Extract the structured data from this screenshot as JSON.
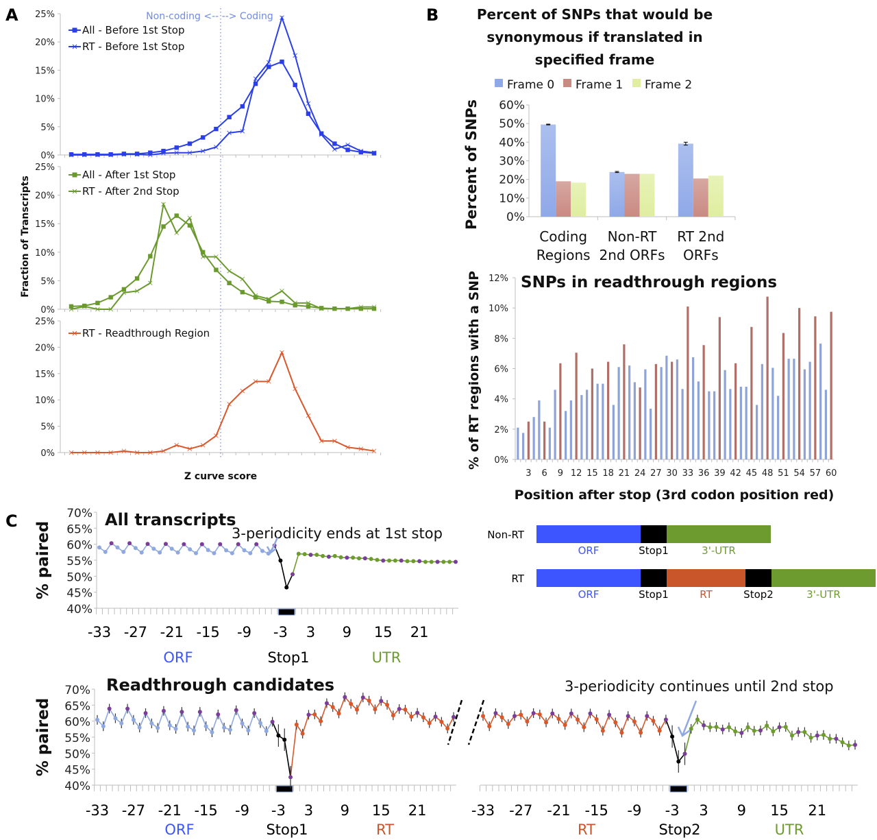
{
  "panels": {
    "A": {
      "letter": "A",
      "ylabel": "Fraction of Transcripts",
      "xlabel": "Z curve score",
      "annotation": "Non-coding <-- --> Coding"
    },
    "B": {
      "letter": "B",
      "title_lines": [
        "Percent of SNPs that would be",
        "synonymous if translated in",
        "specified frame"
      ]
    },
    "C": {
      "letter": "C",
      "top_title": "All transcripts",
      "top_annotation": "3-periodicity ends at 1st stop",
      "bottom_title": "Readthrough candidates",
      "bottom_annotation": "3-periodicity continues until 2nd stop",
      "ylabel": "% paired",
      "schematic": {
        "rows": [
          {
            "label": "Non-RT",
            "segments": [
              {
                "name": "ORF",
                "color": "#3d55ff"
              },
              {
                "name": "Stop1",
                "color": "#000000"
              },
              {
                "name": "3'-UTR",
                "color": "#6e9b2f"
              }
            ]
          },
          {
            "label": "RT",
            "segments": [
              {
                "name": "ORF",
                "color": "#3d55ff"
              },
              {
                "name": "Stop1",
                "color": "#000000"
              },
              {
                "name": "RT",
                "color": "#c8562a"
              },
              {
                "name": "Stop2",
                "color": "#000000"
              },
              {
                "name": "3'-UTR",
                "color": "#6e9b2f"
              }
            ]
          }
        ],
        "label_colors": {
          "ORF": "#3d55ff",
          "Stop1": "#000000",
          "RT": "#c8562a",
          "Stop2": "#000000",
          "3'-UTR": "#6e9b2f"
        }
      }
    }
  },
  "chart_data": [
    {
      "id": "A1",
      "type": "line",
      "title": "",
      "xlabel": "Z curve score",
      "ylabel": "Fraction of Transcripts",
      "ylim": [
        0,
        25
      ],
      "yticks": [
        "0%",
        "5%",
        "10%",
        "15%",
        "20%",
        "25%"
      ],
      "x": [
        1,
        2,
        3,
        4,
        5,
        6,
        7,
        8,
        9,
        10,
        11,
        12,
        13,
        14,
        15,
        16,
        17,
        18,
        19,
        20,
        21,
        22,
        23,
        24
      ],
      "annotation": "Non-coding <-- --> Coding",
      "divider_between": [
        12,
        13
      ],
      "legend": "top-left",
      "series": [
        {
          "name": "All - Before 1st Stop",
          "color": "#2b3fe8",
          "marker": "square",
          "values": [
            0.1,
            0.1,
            0.1,
            0.1,
            0.2,
            0.2,
            0.4,
            0.7,
            1.3,
            2.0,
            3.1,
            4.6,
            6.7,
            8.6,
            12.6,
            15.6,
            16.5,
            12.4,
            7.3,
            3.8,
            2.0,
            0.9,
            0.5,
            0.3
          ]
        },
        {
          "name": "RT - Before 1st Stop",
          "color": "#2b3fe8",
          "marker": "x",
          "values": [
            0.0,
            0.0,
            0.0,
            0.0,
            0.1,
            0.1,
            0.0,
            0.3,
            0.4,
            0.4,
            0.7,
            1.4,
            3.9,
            4.2,
            13.5,
            16.4,
            24.3,
            17.6,
            9.1,
            3.6,
            1.0,
            1.8,
            0.7,
            0.4
          ]
        }
      ]
    },
    {
      "id": "A2",
      "type": "line",
      "ylim": [
        0,
        25
      ],
      "yticks": [
        "0%",
        "5%",
        "10%",
        "15%",
        "20%",
        "25%"
      ],
      "x": [
        1,
        2,
        3,
        4,
        5,
        6,
        7,
        8,
        9,
        10,
        11,
        12,
        13,
        14,
        15,
        16,
        17,
        18,
        19,
        20,
        21,
        22,
        23,
        24
      ],
      "legend": "top-left",
      "series": [
        {
          "name": "All - After 1st Stop",
          "color": "#6a9a2e",
          "marker": "square",
          "values": [
            0.5,
            0.6,
            1.1,
            2.1,
            3.5,
            5.4,
            9.3,
            14.5,
            16.4,
            14.7,
            10.0,
            6.9,
            4.6,
            3.0,
            2.1,
            1.4,
            1.3,
            0.7,
            0.5,
            0.2,
            0.1,
            0.1,
            0.1,
            0.1
          ]
        },
        {
          "name": "RT - After 2nd Stop",
          "color": "#6a9a2e",
          "marker": "x",
          "values": [
            0.0,
            0.5,
            0.0,
            0.0,
            2.9,
            3.2,
            4.6,
            18.4,
            13.4,
            16.0,
            9.2,
            9.2,
            6.7,
            5.3,
            2.4,
            1.8,
            3.2,
            1.1,
            1.1,
            0.1,
            0.1,
            0.1,
            0.4,
            0.4
          ]
        }
      ]
    },
    {
      "id": "A3",
      "type": "line",
      "ylim": [
        0,
        25
      ],
      "yticks": [
        "0%",
        "5%",
        "10%",
        "15%",
        "20%",
        "25%"
      ],
      "x": [
        1,
        2,
        3,
        4,
        5,
        6,
        7,
        8,
        9,
        10,
        11,
        12,
        13,
        14,
        15,
        16,
        17,
        18,
        19,
        20,
        21,
        22,
        23,
        24
      ],
      "legend": "top-left",
      "series": [
        {
          "name": "RT - Readthrough Region",
          "color": "#d9582b",
          "marker": "x",
          "values": [
            0.0,
            0.0,
            0.0,
            0.0,
            0.3,
            0.0,
            0.0,
            0.3,
            1.4,
            0.7,
            1.4,
            3.2,
            9.2,
            11.7,
            13.5,
            13.5,
            19.0,
            12.1,
            7.0,
            2.2,
            2.2,
            1.0,
            0.7,
            0.3
          ]
        }
      ]
    },
    {
      "id": "B1",
      "type": "bar",
      "title": "Percent of SNPs that would be synonymous if translated in specified frame",
      "ylabel": "Percent of SNPs",
      "xlabel": "",
      "ylim": [
        0,
        60
      ],
      "yticks": [
        "0%",
        "10%",
        "20%",
        "30%",
        "40%",
        "50%",
        "60%"
      ],
      "categories": [
        [
          "Coding",
          "Regions"
        ],
        [
          "Non-RT",
          "2nd ORFs"
        ],
        [
          "RT 2nd",
          "ORFs"
        ]
      ],
      "legend": "top",
      "series": [
        {
          "name": "Frame 0",
          "color": "#8fa9e8",
          "values": [
            49.5,
            24.0,
            39.2
          ],
          "error": [
            0.2,
            0.3,
            0.8
          ]
        },
        {
          "name": "Frame 1",
          "color": "#c98a82",
          "values": [
            19.0,
            23.0,
            20.5
          ]
        },
        {
          "name": "Frame 2",
          "color": "#dfeea0",
          "values": [
            18.3,
            23.0,
            22.0
          ]
        }
      ]
    },
    {
      "id": "B2",
      "type": "bar",
      "title": "SNPs in readthrough regions",
      "ylabel": "% of RT regions with a SNP",
      "xlabel": "Position after stop (3rd codon position red)",
      "ylim": [
        0,
        12
      ],
      "yticks": [
        "0%",
        "2%",
        "4%",
        "6%",
        "8%",
        "10%",
        "12%"
      ],
      "xtick_labels": [
        "3",
        "6",
        "9",
        "12",
        "15",
        "18",
        "21",
        "24",
        "27",
        "30",
        "33",
        "36",
        "39",
        "42",
        "45",
        "48",
        "51",
        "54",
        "57",
        "60"
      ],
      "colors": {
        "other": "#8ea3d6",
        "third": "#b06e66"
      },
      "values": [
        2.1,
        1.75,
        2.5,
        2.8,
        3.9,
        2.5,
        2.1,
        4.6,
        6.35,
        3.2,
        3.9,
        7.05,
        4.25,
        4.6,
        6.0,
        5.0,
        5.0,
        6.45,
        3.6,
        6.1,
        7.6,
        6.2,
        5.1,
        4.75,
        5.95,
        3.35,
        6.3,
        6.1,
        6.85,
        6.45,
        6.6,
        4.65,
        10.1,
        6.75,
        5.15,
        7.55,
        4.5,
        4.5,
        9.4,
        5.9,
        4.65,
        6.35,
        4.8,
        4.8,
        8.75,
        3.6,
        6.3,
        10.75,
        6.05,
        4.2,
        8.35,
        6.65,
        6.65,
        10.0,
        5.95,
        6.45,
        9.45,
        7.65,
        4.6,
        9.75
      ]
    },
    {
      "id": "C1",
      "type": "line",
      "title": "All transcripts",
      "ylabel": "% paired",
      "ylim": [
        40,
        70
      ],
      "yticks": [
        "40%",
        "45%",
        "50%",
        "55%",
        "60%",
        "65%",
        "70%"
      ],
      "xtick_labels": [
        "-33",
        "-27",
        "-21",
        "-15",
        "-9",
        "-3",
        "3",
        "9",
        "15",
        "21"
      ],
      "region_labels": [
        {
          "text": "ORF",
          "color": "#3d55ff"
        },
        {
          "text": "Stop1",
          "color": "#000000"
        },
        {
          "text": "UTR",
          "color": "#6e9b2f"
        }
      ],
      "annotation": "3-periodicity ends at 1st stop",
      "segments": [
        {
          "name": "ORF",
          "color": "#8fa9e0",
          "positions": "-33..-4",
          "values": [
            59.0,
            57.6,
            60.3,
            59.0,
            57.6,
            60.3,
            58.8,
            57.4,
            60.1,
            58.6,
            57.4,
            60.1,
            58.6,
            57.4,
            60.0,
            58.4,
            57.2,
            60.0,
            58.2,
            57.2,
            60.0,
            58.1,
            57.2,
            60.0,
            58.1,
            57.2,
            60.0,
            57.9,
            57.1,
            59.6
          ]
        },
        {
          "name": "Stop1",
          "color": "#000000",
          "positions": "-3..-1",
          "values": [
            54.9,
            46.5,
            50.6
          ]
        },
        {
          "name": "UTR",
          "color": "#6e9b2f",
          "positions": "1..27",
          "values": [
            57.0,
            56.9,
            56.7,
            56.7,
            56.3,
            56.1,
            56.3,
            55.9,
            55.8,
            55.8,
            55.6,
            55.6,
            55.4,
            55.1,
            54.9,
            54.9,
            54.9,
            54.9,
            54.7,
            54.7,
            54.7,
            54.5,
            54.5,
            54.5,
            54.5,
            54.5,
            54.5
          ]
        }
      ],
      "third_position_color": "#7a3d98"
    },
    {
      "id": "C2",
      "type": "line",
      "title": "Readthrough candidates",
      "ylabel": "% paired",
      "ylim": [
        40,
        70
      ],
      "yticks": [
        "40%",
        "45%",
        "50%",
        "55%",
        "60%",
        "65%",
        "70%"
      ],
      "xtick_labels": [
        "-33",
        "-27",
        "-21",
        "-15",
        "-9",
        "-3",
        "3",
        "9",
        "15",
        "21"
      ],
      "region_labels": [
        {
          "text": "ORF",
          "color": "#3d55ff"
        },
        {
          "text": "Stop1",
          "color": "#000000"
        },
        {
          "text": "RT",
          "color": "#c8562a"
        }
      ],
      "segments": [
        {
          "name": "ORF",
          "color": "#8fa9e0",
          "positions": "-33..-4",
          "values": [
            60.4,
            58.4,
            63.9,
            60.9,
            59.3,
            63.9,
            60.4,
            58.0,
            62.5,
            59.3,
            57.9,
            63.2,
            58.7,
            57.6,
            62.9,
            58.3,
            57.1,
            62.9,
            58.4,
            56.5,
            62.1,
            58.0,
            57.3,
            63.4,
            59.3,
            57.1,
            62.5,
            59.4,
            56.9,
            59.8
          ]
        },
        {
          "name": "Stop1",
          "color": "#000000",
          "positions": "-3..-1",
          "values": [
            55.5,
            54.2,
            42.5
          ]
        },
        {
          "name": "RT",
          "color": "#d9582b",
          "positions": "1..27",
          "values": [
            58.9,
            56.1,
            62.0,
            62.1,
            60.0,
            65.6,
            64.4,
            62.4,
            67.5,
            65.4,
            63.6,
            67.4,
            66.4,
            63.7,
            66.3,
            65.1,
            61.8,
            63.8,
            63.6,
            61.4,
            62.6,
            61.2,
            59.4,
            61.4,
            59.8,
            57.7,
            61.3
          ]
        }
      ],
      "third_position_color": "#7a3d98"
    },
    {
      "id": "C3",
      "type": "line",
      "ylim": [
        40,
        70
      ],
      "xtick_labels": [
        "-33",
        "-27",
        "-21",
        "-15",
        "-9",
        "-3",
        "3",
        "9",
        "15",
        "21"
      ],
      "region_labels": [
        {
          "text": "RT",
          "color": "#c8562a"
        },
        {
          "text": "Stop2",
          "color": "#000000"
        },
        {
          "text": "UTR",
          "color": "#6e9b2f"
        }
      ],
      "annotation": "3-periodicity continues until 2nd stop",
      "segments": [
        {
          "name": "RT",
          "color": "#d9582b",
          "positions": "-33..-4",
          "values": [
            61.6,
            58.4,
            62.5,
            61.2,
            59.1,
            61.6,
            62.0,
            59.9,
            62.5,
            62.1,
            59.6,
            62.4,
            60.7,
            58.8,
            62.4,
            60.5,
            58.1,
            62.4,
            60.6,
            57.0,
            62.0,
            59.6,
            56.4,
            61.6,
            59.9,
            56.4,
            61.6,
            60.1,
            57.0,
            60.5
          ]
        },
        {
          "name": "Stop2",
          "color": "#000000",
          "positions": "-3..-1",
          "values": [
            55.2,
            47.4,
            49.8
          ]
        },
        {
          "name": "UTR",
          "color": "#6e9b2f",
          "positions": "1..27",
          "values": [
            57.6,
            60.5,
            58.7,
            58.1,
            58.2,
            57.4,
            58.1,
            56.8,
            56.3,
            58.1,
            57.0,
            57.1,
            58.6,
            56.8,
            58.1,
            58.2,
            55.5,
            56.6,
            56.6,
            54.8,
            55.5,
            55.7,
            54.5,
            54.5,
            53.4,
            52.4,
            52.6
          ]
        }
      ],
      "third_position_color": "#7a3d98"
    }
  ]
}
